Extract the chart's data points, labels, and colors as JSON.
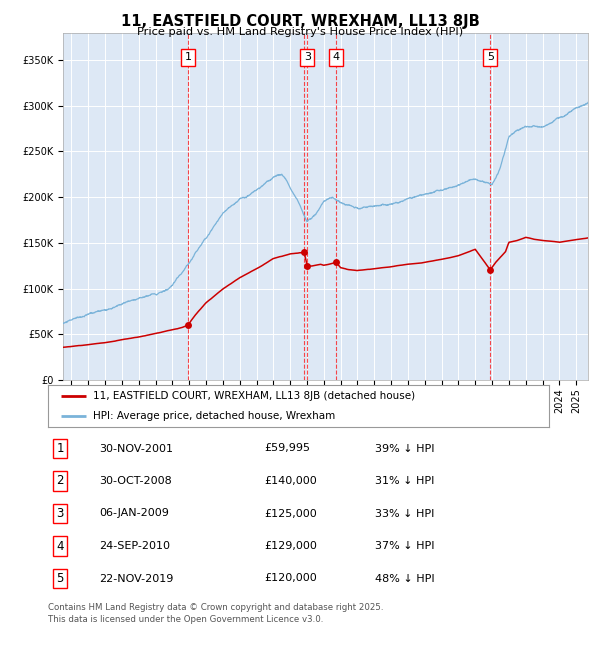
{
  "title": "11, EASTFIELD COURT, WREXHAM, LL13 8JB",
  "subtitle": "Price paid vs. HM Land Registry's House Price Index (HPI)",
  "background_color": "#dce9f5",
  "plot_bg_color": "#dde8f5",
  "hpi_color": "#7ab3d9",
  "price_color": "#cc0000",
  "ylim": [
    0,
    380000
  ],
  "yticks": [
    0,
    50000,
    100000,
    150000,
    200000,
    250000,
    300000,
    350000
  ],
  "xlim_start": 1994.5,
  "xlim_end": 2025.7,
  "legend_label_red": "11, EASTFIELD COURT, WREXHAM, LL13 8JB (detached house)",
  "legend_label_blue": "HPI: Average price, detached house, Wrexham",
  "transactions": [
    {
      "id": 1,
      "date_year": 2001.92,
      "price": 59995,
      "label": "30-NOV-2001",
      "price_str": "£59,995",
      "hpi_pct": "39% ↓ HPI",
      "show_box": true
    },
    {
      "id": 2,
      "date_year": 2008.83,
      "price": 140000,
      "label": "30-OCT-2008",
      "price_str": "£140,000",
      "hpi_pct": "31% ↓ HPI",
      "show_box": false
    },
    {
      "id": 3,
      "date_year": 2009.02,
      "price": 125000,
      "label": "06-JAN-2009",
      "price_str": "£125,000",
      "hpi_pct": "33% ↓ HPI",
      "show_box": true
    },
    {
      "id": 4,
      "date_year": 2010.73,
      "price": 129000,
      "label": "24-SEP-2010",
      "price_str": "£129,000",
      "hpi_pct": "37% ↓ HPI",
      "show_box": true
    },
    {
      "id": 5,
      "date_year": 2019.89,
      "price": 120000,
      "label": "22-NOV-2019",
      "price_str": "£120,000",
      "hpi_pct": "48% ↓ HPI",
      "show_box": true
    }
  ],
  "footer": "Contains HM Land Registry data © Crown copyright and database right 2025.\nThis data is licensed under the Open Government Licence v3.0."
}
